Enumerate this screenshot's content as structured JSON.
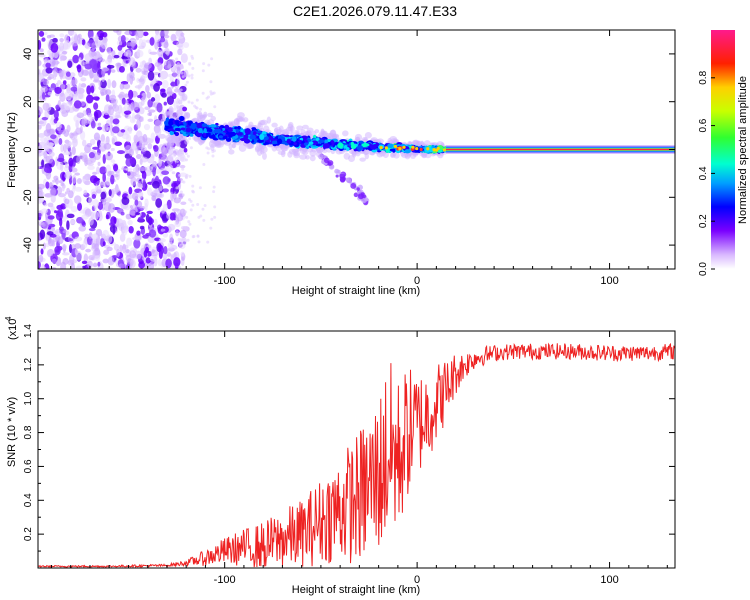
{
  "title": "C2E1.2026.079.11.47.E33",
  "chart_data": [
    {
      "type": "heatmap",
      "xlabel": "Height of straight line (km)",
      "ylabel": "Frequency (Hz)",
      "xlim": [
        -197,
        134
      ],
      "ylim": [
        -50,
        50
      ],
      "xticks": [
        -100,
        0,
        100
      ],
      "yticks": [
        -40,
        -20,
        0,
        20,
        40
      ],
      "xtick_labels": [
        "-100",
        "0",
        "100"
      ],
      "ytick_labels": [
        "-40",
        "-20",
        "0",
        "20",
        "40"
      ],
      "colorbar": {
        "label": "Normalized spectral amplitude",
        "range": [
          0,
          1
        ],
        "ticks": [
          0,
          0.2,
          0.4,
          0.6,
          0.8
        ],
        "tick_labels": [
          "0.0",
          "0.2",
          "0.4",
          "0.6",
          "0.8"
        ]
      },
      "description_points": {
        "noise_region_height_km": [
          -197,
          -120
        ],
        "signal_start_height_km": -130,
        "signal_start_frequency_hz": 10,
        "stable_line_from_height_km": 15,
        "stable_line_frequency_hz": 0
      }
    },
    {
      "type": "line",
      "xlabel": "Height of straight line (km)",
      "ylabel": "SNR (10 * v/v)",
      "scale_label": "(x10",
      "scale_exponent": "4",
      "xlim": [
        -197,
        134
      ],
      "ylim": [
        0,
        1.4
      ],
      "xticks": [
        -100,
        0,
        100
      ],
      "yticks": [
        0.2,
        0.4,
        0.6,
        0.8,
        1.0,
        1.2,
        1.4
      ],
      "xtick_labels": [
        "-100",
        "0",
        "100"
      ],
      "ytick_labels": [
        "0.2",
        "0.4",
        "0.6",
        "0.8",
        "1.0",
        "1.2",
        "1.4"
      ],
      "color": "#ee2222",
      "x": [
        -197,
        -160,
        -130,
        -120,
        -110,
        -100,
        -90,
        -80,
        -70,
        -60,
        -50,
        -40,
        -30,
        -20,
        -15,
        -10,
        -5,
        0,
        5,
        10,
        15,
        20,
        25,
        30,
        40,
        50,
        60,
        80,
        100,
        120,
        134
      ],
      "y": [
        0.01,
        0.01,
        0.015,
        0.03,
        0.06,
        0.1,
        0.12,
        0.13,
        0.17,
        0.2,
        0.28,
        0.35,
        0.42,
        0.55,
        0.7,
        0.65,
        0.8,
        0.85,
        0.9,
        0.98,
        1.05,
        1.15,
        1.2,
        1.24,
        1.27,
        1.28,
        1.28,
        1.28,
        1.27,
        1.27,
        1.28
      ],
      "noise": [
        0.003,
        0.003,
        0.005,
        0.01,
        0.03,
        0.05,
        0.07,
        0.09,
        0.11,
        0.13,
        0.16,
        0.2,
        0.25,
        0.3,
        0.35,
        0.3,
        0.25,
        0.2,
        0.18,
        0.15,
        0.12,
        0.08,
        0.05,
        0.04,
        0.03,
        0.03,
        0.03,
        0.03,
        0.03,
        0.03,
        0.03
      ]
    }
  ]
}
